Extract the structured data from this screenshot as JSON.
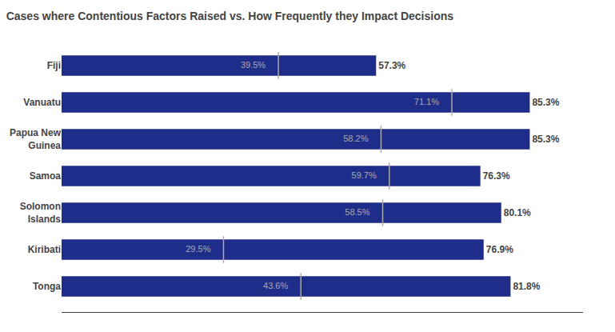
{
  "chart_data": {
    "type": "bar",
    "orientation": "horizontal",
    "title": "Cases where Contentious Factors Raised vs. How Frequently they Impact Decisions",
    "categories": [
      "Fiji",
      "Vanuatu",
      "Papua New\nGuinea",
      "Samoa",
      "Solomon\nIslands",
      "Kiribati",
      "Tonga"
    ],
    "series": [
      {
        "type": "bar",
        "color": "#1f2d8a",
        "values": [
          57.3,
          85.3,
          85.3,
          76.3,
          80.1,
          76.9,
          81.8
        ],
        "value_labels": [
          "57.3%",
          "85.3%",
          "85.3%",
          "76.3%",
          "80.1%",
          "76.9%",
          "81.8%"
        ]
      },
      {
        "type": "scatter",
        "marker": "line",
        "color": "#aaaaaa",
        "values": [
          39.5,
          71.1,
          58.2,
          59.7,
          58.5,
          29.5,
          43.6
        ],
        "value_labels": [
          "39.5%",
          "71.1%",
          "58.2%",
          "59.7%",
          "58.5%",
          "29.5%",
          "43.6%"
        ]
      }
    ],
    "xlim": [
      0,
      95
    ],
    "data_labels": true,
    "tick_labels": "y",
    "grid": false
  }
}
